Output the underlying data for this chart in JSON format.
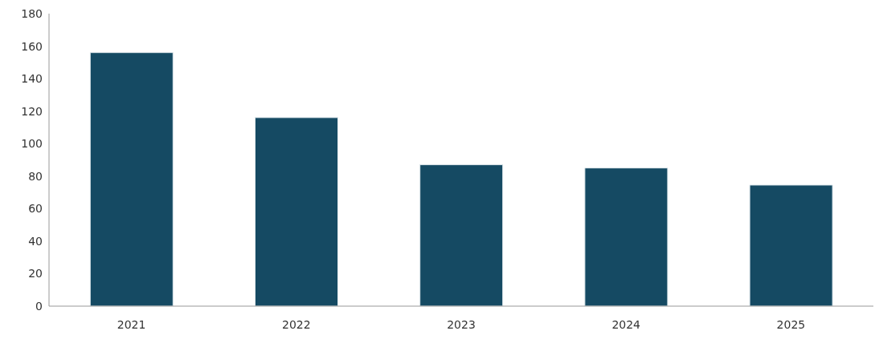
{
  "chart_data": {
    "type": "bar",
    "categories": [
      "2021",
      "2022",
      "2023",
      "2024",
      "2025"
    ],
    "values": [
      156,
      116,
      87,
      85,
      74.5
    ],
    "color": "#154a63",
    "ylim": [
      0,
      180
    ],
    "yticks": [
      0,
      20,
      40,
      60,
      80,
      100,
      120,
      140,
      160,
      180
    ],
    "grid": false,
    "legend": false
  }
}
